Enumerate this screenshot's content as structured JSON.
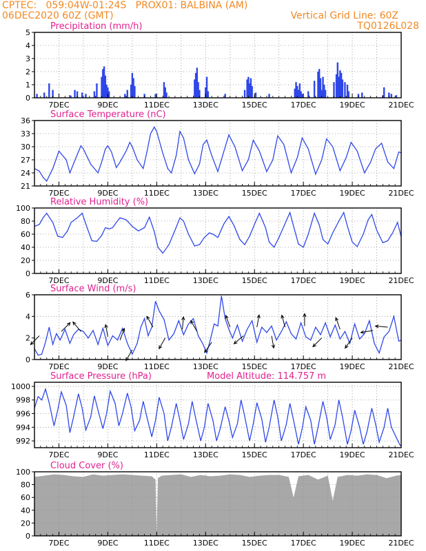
{
  "header": {
    "left_line1": "CPTEC:   059:04W-01:24S   PROX01: BALBINA (AM)",
    "left_line2": "06DEC2020 60Z (GMT)",
    "right_line2": "Vertical Grid Line: 60Z",
    "right_line3": "TQ0126L028"
  },
  "colors": {
    "header_text": "#f08a24",
    "panel_title": "#e0208f",
    "series_line": "#2e47e8",
    "precip_bar": "#2e47e8",
    "cloud_fill": "#a8a8a8",
    "axis": "#000000",
    "grid": "#8c8c8c"
  },
  "x_tick_labels": [
    "7DEC",
    "9DEC",
    "11DEC",
    "13DEC",
    "15DEC",
    "17DEC",
    "19DEC",
    "21DEC"
  ],
  "chart_data": [
    {
      "type": "bar",
      "title": "Precipitation (mm/h)",
      "xlim": [
        6.0,
        21.0
      ],
      "ylim": [
        0,
        5
      ],
      "yticks": [
        0,
        1,
        2,
        3,
        4,
        5
      ],
      "grid": true,
      "x": [
        6.1,
        6.4,
        6.6,
        6.75,
        7.45,
        7.65,
        7.75,
        7.95,
        8.1,
        8.45,
        8.55,
        8.75,
        8.8,
        8.85,
        8.9,
        8.95,
        9.0,
        9.05,
        9.7,
        9.8,
        9.95,
        10.0,
        10.05,
        10.1,
        10.5,
        10.95,
        11.3,
        11.35,
        11.4,
        12.55,
        12.6,
        12.65,
        12.7,
        12.75,
        13.0,
        13.05,
        13.1,
        13.8,
        14.6,
        14.7,
        14.75,
        14.8,
        14.85,
        14.9,
        15.05,
        15.6,
        16.65,
        16.7,
        16.75,
        16.8,
        16.85,
        16.9,
        16.95,
        17.2,
        17.45,
        17.6,
        17.65,
        17.7,
        17.75,
        17.8,
        17.85,
        17.9,
        18.25,
        18.35,
        18.4,
        18.45,
        18.5,
        18.55,
        18.6,
        18.7,
        18.8,
        18.85,
        19.25,
        19.4,
        20.25,
        20.3,
        20.5,
        20.6,
        20.8
      ],
      "values": [
        0.3,
        0.4,
        1.1,
        0.6,
        0.2,
        0.6,
        0.5,
        0.4,
        0.3,
        0.5,
        1.1,
        1.6,
        2.2,
        2.4,
        1.7,
        1.0,
        0.8,
        0.5,
        0.3,
        0.6,
        1.0,
        1.9,
        1.5,
        0.9,
        0.3,
        0.3,
        1.2,
        0.8,
        0.4,
        1.4,
        1.9,
        2.3,
        1.2,
        0.6,
        0.8,
        1.6,
        0.5,
        0.3,
        0.6,
        1.4,
        1.6,
        1.1,
        1.5,
        0.9,
        0.4,
        0.3,
        0.7,
        1.2,
        0.9,
        0.6,
        1.1,
        0.5,
        0.3,
        0.5,
        1.3,
        2.0,
        2.2,
        1.5,
        0.6,
        1.6,
        1.0,
        0.6,
        1.2,
        1.8,
        2.7,
        1.6,
        2.1,
        1.9,
        1.4,
        1.2,
        1.0,
        0.5,
        0.3,
        0.4,
        0.2,
        0.8,
        0.4,
        0.3,
        0.2
      ]
    },
    {
      "type": "line",
      "title": "Surface Temperature (nC)",
      "xlim": [
        6.0,
        21.0
      ],
      "ylim": [
        21,
        36
      ],
      "yticks": [
        21,
        24,
        27,
        30,
        33,
        36
      ],
      "grid": true,
      "x": [
        6.0,
        6.2,
        6.35,
        6.5,
        6.75,
        7.0,
        7.3,
        7.45,
        7.7,
        7.9,
        8.0,
        8.3,
        8.6,
        8.75,
        8.9,
        9.0,
        9.15,
        9.35,
        9.5,
        9.75,
        9.9,
        10.0,
        10.2,
        10.45,
        10.6,
        10.75,
        10.9,
        11.0,
        11.25,
        11.45,
        11.6,
        11.8,
        11.95,
        12.1,
        12.3,
        12.55,
        12.75,
        12.9,
        13.05,
        13.25,
        13.5,
        13.75,
        13.95,
        14.2,
        14.5,
        14.75,
        14.95,
        15.2,
        15.5,
        15.75,
        15.95,
        16.2,
        16.5,
        16.75,
        16.95,
        17.2,
        17.5,
        17.75,
        17.95,
        18.2,
        18.5,
        18.75,
        18.95,
        19.2,
        19.5,
        19.75,
        19.95,
        20.2,
        20.45,
        20.7,
        20.9,
        21.0
      ],
      "values": [
        25.0,
        24.4,
        23.0,
        22.1,
        25.0,
        29.0,
        27.0,
        24.0,
        27.5,
        30.2,
        29.5,
        26.0,
        24.0,
        26.5,
        29.5,
        30.2,
        28.8,
        25.2,
        26.5,
        29.0,
        31.0,
        30.0,
        27.0,
        25.0,
        28.8,
        33.0,
        34.5,
        33.5,
        28.5,
        25.0,
        24.0,
        28.0,
        33.5,
        32.0,
        27.0,
        23.8,
        26.0,
        30.5,
        31.5,
        28.0,
        24.3,
        29.0,
        32.7,
        30.0,
        24.5,
        27.0,
        31.5,
        29.0,
        24.3,
        27.0,
        32.5,
        30.5,
        24.0,
        27.5,
        32.0,
        29.5,
        23.7,
        27.0,
        31.8,
        30.0,
        24.5,
        27.5,
        31.0,
        29.0,
        24.0,
        26.5,
        29.5,
        30.8,
        26.5,
        25.0,
        28.8,
        28.6
      ]
    },
    {
      "type": "line",
      "title": "Relative Humidity (%)",
      "xlim": [
        6.0,
        21.0
      ],
      "ylim": [
        0,
        100
      ],
      "yticks": [
        0,
        20,
        40,
        60,
        80,
        100
      ],
      "grid": true,
      "x": [
        6.0,
        6.2,
        6.35,
        6.5,
        6.75,
        6.95,
        7.15,
        7.35,
        7.5,
        7.75,
        7.95,
        8.15,
        8.35,
        8.55,
        8.75,
        8.9,
        9.05,
        9.2,
        9.35,
        9.5,
        9.75,
        10.0,
        10.25,
        10.5,
        10.7,
        10.9,
        11.05,
        11.25,
        11.5,
        11.75,
        11.95,
        12.1,
        12.3,
        12.55,
        12.75,
        12.95,
        13.15,
        13.3,
        13.5,
        13.75,
        13.95,
        14.15,
        14.4,
        14.6,
        14.8,
        15.0,
        15.2,
        15.45,
        15.6,
        15.8,
        16.0,
        16.2,
        16.45,
        16.6,
        16.8,
        17.0,
        17.2,
        17.45,
        17.65,
        17.8,
        18.0,
        18.2,
        18.45,
        18.65,
        18.8,
        19.0,
        19.2,
        19.45,
        19.65,
        19.8,
        20.0,
        20.25,
        20.45,
        20.65,
        20.85,
        21.0
      ],
      "values": [
        72,
        75,
        85,
        92,
        78,
        57,
        55,
        65,
        78,
        85,
        92,
        70,
        50,
        49,
        58,
        70,
        68,
        70,
        78,
        85,
        82,
        72,
        65,
        70,
        86,
        64,
        40,
        31,
        44,
        66,
        85,
        80,
        60,
        42,
        44,
        55,
        62,
        60,
        55,
        76,
        87,
        74,
        52,
        44,
        57,
        75,
        92,
        70,
        48,
        40,
        55,
        72,
        93,
        72,
        45,
        40,
        60,
        92,
        74,
        52,
        45,
        62,
        80,
        93,
        72,
        48,
        41,
        60,
        82,
        90,
        66,
        47,
        50,
        62,
        78,
        56
      ]
    },
    {
      "type": "line",
      "title": "Surface Wind (m/s)",
      "xlim": [
        6.0,
        21.0
      ],
      "ylim": [
        0,
        6
      ],
      "yticks": [
        0,
        2,
        4,
        6
      ],
      "grid": true,
      "x": [
        6.0,
        6.15,
        6.3,
        6.45,
        6.6,
        6.75,
        6.9,
        7.05,
        7.25,
        7.45,
        7.6,
        7.8,
        8.0,
        8.2,
        8.4,
        8.6,
        8.8,
        9.0,
        9.2,
        9.4,
        9.6,
        9.8,
        10.0,
        10.2,
        10.35,
        10.5,
        10.65,
        10.8,
        10.95,
        11.1,
        11.3,
        11.5,
        11.7,
        11.9,
        12.1,
        12.3,
        12.5,
        12.7,
        12.9,
        13.05,
        13.2,
        13.35,
        13.5,
        13.65,
        13.8,
        13.95,
        14.1,
        14.3,
        14.5,
        14.7,
        14.9,
        15.1,
        15.3,
        15.5,
        15.7,
        15.9,
        16.1,
        16.3,
        16.5,
        16.7,
        16.9,
        17.1,
        17.3,
        17.5,
        17.7,
        17.9,
        18.1,
        18.3,
        18.5,
        18.7,
        18.9,
        19.1,
        19.3,
        19.5,
        19.7,
        19.9,
        20.1,
        20.3,
        20.5,
        20.7,
        20.9,
        21.0
      ],
      "values": [
        1.0,
        0.4,
        0.5,
        1.6,
        3.0,
        1.4,
        2.4,
        1.8,
        2.8,
        1.5,
        2.3,
        2.8,
        2.6,
        2.0,
        2.7,
        1.4,
        2.9,
        1.3,
        2.2,
        1.8,
        2.9,
        1.5,
        0.5,
        1.5,
        3.0,
        3.8,
        2.2,
        3.0,
        5.4,
        4.5,
        3.7,
        1.8,
        2.4,
        3.6,
        2.3,
        3.3,
        3.8,
        2.2,
        1.4,
        0.6,
        1.9,
        3.3,
        3.1,
        5.9,
        3.8,
        2.8,
        2.0,
        3.2,
        1.7,
        2.8,
        3.6,
        1.6,
        3.0,
        2.5,
        3.1,
        1.8,
        2.6,
        3.5,
        2.4,
        1.9,
        3.4,
        2.1,
        1.8,
        3.0,
        2.3,
        3.4,
        2.1,
        3.2,
        1.9,
        2.6,
        1.5,
        3.3,
        1.9,
        2.4,
        3.6,
        1.5,
        0.6,
        2.1,
        2.6,
        4.0,
        1.7,
        1.8
      ],
      "wind_arrows": [
        {
          "x": 6.2,
          "y": 2.2,
          "dir_deg": 225
        },
        {
          "x": 7.1,
          "y": 2.6,
          "dir_deg": 45
        },
        {
          "x": 7.9,
          "y": 2.6,
          "dir_deg": 320
        },
        {
          "x": 9.0,
          "y": 2.1,
          "dir_deg": 350
        },
        {
          "x": 9.5,
          "y": 1.8,
          "dir_deg": 20
        },
        {
          "x": 10.0,
          "y": 0.9,
          "dir_deg": 210
        },
        {
          "x": 10.85,
          "y": 3.0,
          "dir_deg": 330
        },
        {
          "x": 11.35,
          "y": 2.0,
          "dir_deg": 210
        },
        {
          "x": 12.05,
          "y": 2.8,
          "dir_deg": 5
        },
        {
          "x": 12.65,
          "y": 2.6,
          "dir_deg": 330
        },
        {
          "x": 13.25,
          "y": 1.6,
          "dir_deg": 215
        },
        {
          "x": 14.0,
          "y": 3.0,
          "dir_deg": 340
        },
        {
          "x": 14.55,
          "y": 2.2,
          "dir_deg": 230
        },
        {
          "x": 15.1,
          "y": 3.0,
          "dir_deg": 10
        },
        {
          "x": 15.7,
          "y": 2.2,
          "dir_deg": 170
        },
        {
          "x": 16.25,
          "y": 3.0,
          "dir_deg": 345
        },
        {
          "x": 17.05,
          "y": 3.1,
          "dir_deg": 0
        },
        {
          "x": 17.75,
          "y": 2.0,
          "dir_deg": 225
        },
        {
          "x": 18.5,
          "y": 2.8,
          "dir_deg": 340
        },
        {
          "x": 19.0,
          "y": 2.0,
          "dir_deg": 215
        },
        {
          "x": 19.85,
          "y": 2.7,
          "dir_deg": 260
        },
        {
          "x": 20.45,
          "y": 3.0,
          "dir_deg": 275
        }
      ]
    },
    {
      "type": "line",
      "title": "Surface Pressure (hPa)",
      "subtitle": "Model Altitude: 114.757 m",
      "xlim": [
        6.0,
        21.0
      ],
      "ylim": [
        991,
        1000.6
      ],
      "yticks": [
        992,
        994,
        996,
        998,
        1000
      ],
      "grid": true,
      "x": [
        6.0,
        6.15,
        6.3,
        6.45,
        6.6,
        6.8,
        6.95,
        7.1,
        7.3,
        7.45,
        7.6,
        7.8,
        7.95,
        8.1,
        8.3,
        8.45,
        8.6,
        8.8,
        8.95,
        9.1,
        9.3,
        9.45,
        9.6,
        9.8,
        9.95,
        10.1,
        10.3,
        10.45,
        10.6,
        10.8,
        10.95,
        11.1,
        11.3,
        11.45,
        11.6,
        11.8,
        11.95,
        12.1,
        12.3,
        12.45,
        12.6,
        12.8,
        12.95,
        13.1,
        13.3,
        13.45,
        13.6,
        13.8,
        13.95,
        14.1,
        14.3,
        14.45,
        14.6,
        14.8,
        14.95,
        15.1,
        15.3,
        15.45,
        15.6,
        15.8,
        15.95,
        16.1,
        16.3,
        16.45,
        16.6,
        16.8,
        16.95,
        17.1,
        17.3,
        17.45,
        17.6,
        17.8,
        17.95,
        18.1,
        18.3,
        18.45,
        18.6,
        18.8,
        18.95,
        19.1,
        19.3,
        19.45,
        19.6,
        19.8,
        19.95,
        20.1,
        20.3,
        20.45,
        20.6,
        20.8,
        20.95,
        21.0
      ],
      "values": [
        996.8,
        998.5,
        998.0,
        999.6,
        997.6,
        994.2,
        996.5,
        999.2,
        997.2,
        993.2,
        995.5,
        998.9,
        996.8,
        993.6,
        995.5,
        998.6,
        996.5,
        993.8,
        996.0,
        999.3,
        997.5,
        994.2,
        996.0,
        999.0,
        997.0,
        993.5,
        995.0,
        997.8,
        995.5,
        992.6,
        995.0,
        998.4,
        996.0,
        992.0,
        994.0,
        997.5,
        995.0,
        992.2,
        994.5,
        997.8,
        995.2,
        992.0,
        994.0,
        997.5,
        995.0,
        992.0,
        993.8,
        997.0,
        995.0,
        992.5,
        994.5,
        998.0,
        995.6,
        992.0,
        994.5,
        997.6,
        995.2,
        991.8,
        994.0,
        998.0,
        995.5,
        992.0,
        994.4,
        997.5,
        995.0,
        991.5,
        993.8,
        997.0,
        995.0,
        991.5,
        994.0,
        997.8,
        995.5,
        992.2,
        994.4,
        998.0,
        995.5,
        991.5,
        993.5,
        996.5,
        994.0,
        991.5,
        993.3,
        996.8,
        994.5,
        991.8,
        994.0,
        996.8,
        994.0,
        992.5,
        991.4,
        991.2
      ]
    },
    {
      "type": "area",
      "title": "Cloud Cover (%)",
      "xlim": [
        6.0,
        21.0
      ],
      "ylim": [
        0,
        100
      ],
      "yticks": [
        0,
        20,
        40,
        60,
        80,
        100
      ],
      "grid": true,
      "x": [
        6.0,
        6.4,
        6.8,
        7.2,
        7.6,
        8.0,
        8.4,
        8.8,
        9.2,
        9.6,
        10.0,
        10.4,
        10.8,
        10.95,
        11.0,
        11.05,
        11.2,
        11.6,
        12.0,
        12.4,
        12.8,
        13.2,
        13.6,
        14.0,
        14.4,
        14.8,
        15.2,
        15.6,
        16.0,
        16.4,
        16.6,
        16.8,
        17.2,
        17.6,
        18.0,
        18.2,
        18.4,
        18.8,
        19.2,
        19.6,
        20.0,
        20.4,
        20.8,
        21.0
      ],
      "values": [
        92,
        94,
        96,
        95,
        93,
        92,
        96,
        94,
        95,
        96,
        95,
        94,
        93,
        88,
        2,
        90,
        94,
        95,
        96,
        92,
        95,
        93,
        94,
        96,
        95,
        92,
        94,
        95,
        95,
        92,
        60,
        93,
        95,
        88,
        94,
        55,
        92,
        95,
        94,
        96,
        95,
        90,
        94,
        95
      ]
    }
  ]
}
